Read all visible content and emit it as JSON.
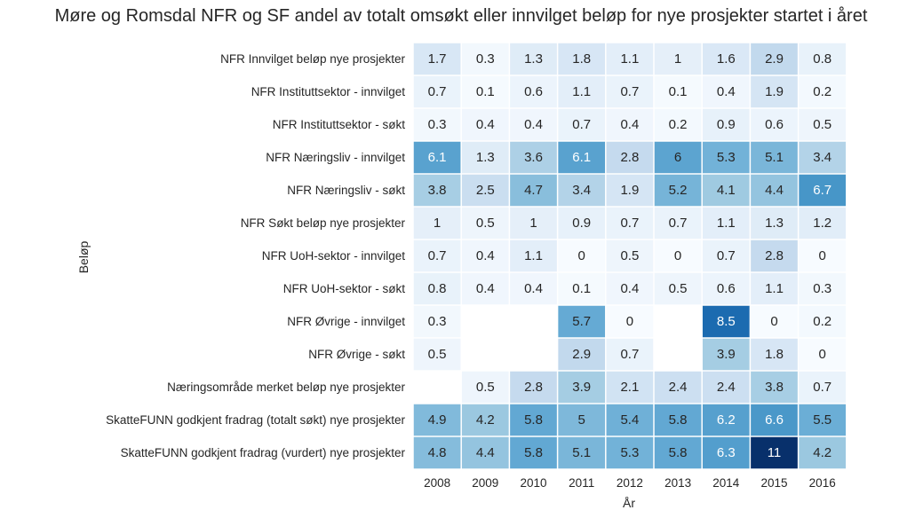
{
  "chart_data": {
    "type": "heatmap",
    "title": "Møre og Romsdal NFR og SF andel av totalt omsøkt eller innvilget beløp for nye prosjekter startet i året",
    "xlabel": "År",
    "ylabel": "Beløp",
    "columns": [
      "2008",
      "2009",
      "2010",
      "2011",
      "2012",
      "2013",
      "2014",
      "2015",
      "2016"
    ],
    "rows": [
      "NFR Innvilget beløp nye prosjekter",
      "NFR Instituttsektor - innvilget",
      "NFR Instituttsektor - søkt",
      "NFR Næringsliv - innvilget",
      "NFR Næringsliv - søkt",
      "NFR Søkt beløp nye prosjekter",
      "NFR UoH-sektor - innvilget",
      "NFR UoH-sektor - søkt",
      "NFR Øvrige - innvilget",
      "NFR Øvrige - søkt",
      "Næringsområde merket beløp nye prosjekter",
      "SkatteFUNN godkjent fradrag (totalt søkt) nye prosjekter",
      "SkatteFUNN godkjent fradrag (vurdert) nye prosjekter"
    ],
    "values": [
      [
        1.7,
        0.3,
        1.3,
        1.8,
        1.1,
        1,
        1.6,
        2.9,
        0.8
      ],
      [
        0.7,
        0.1,
        0.6,
        1.1,
        0.7,
        0.1,
        0.4,
        1.9,
        0.2
      ],
      [
        0.3,
        0.4,
        0.4,
        0.7,
        0.4,
        0.2,
        0.9,
        0.6,
        0.5
      ],
      [
        6.1,
        1.3,
        3.6,
        6.1,
        2.8,
        6,
        5.3,
        5.1,
        3.4
      ],
      [
        3.8,
        2.5,
        4.7,
        3.4,
        1.9,
        5.2,
        4.1,
        4.4,
        6.7
      ],
      [
        1,
        0.5,
        1,
        0.9,
        0.7,
        0.7,
        1.1,
        1.3,
        1.2
      ],
      [
        0.7,
        0.4,
        1.1,
        0,
        0.5,
        0,
        0.7,
        2.8,
        0
      ],
      [
        0.8,
        0.4,
        0.4,
        0.1,
        0.4,
        0.5,
        0.6,
        1.1,
        0.3
      ],
      [
        0.3,
        null,
        null,
        5.7,
        0,
        null,
        8.5,
        0,
        0.2
      ],
      [
        0.5,
        null,
        null,
        2.9,
        0.7,
        null,
        3.9,
        1.8,
        0
      ],
      [
        null,
        0.5,
        2.8,
        3.9,
        2.1,
        2.4,
        2.4,
        3.8,
        0.7
      ],
      [
        4.9,
        4.2,
        5.8,
        5,
        5.4,
        5.8,
        6.2,
        6.6,
        5.5
      ],
      [
        4.8,
        4.4,
        5.8,
        5.1,
        5.3,
        5.8,
        6.3,
        11,
        4.2
      ]
    ],
    "color_scale": {
      "name": "Blues",
      "vmin": 0,
      "vmax": 11
    },
    "colorbar": false,
    "grid": false
  }
}
